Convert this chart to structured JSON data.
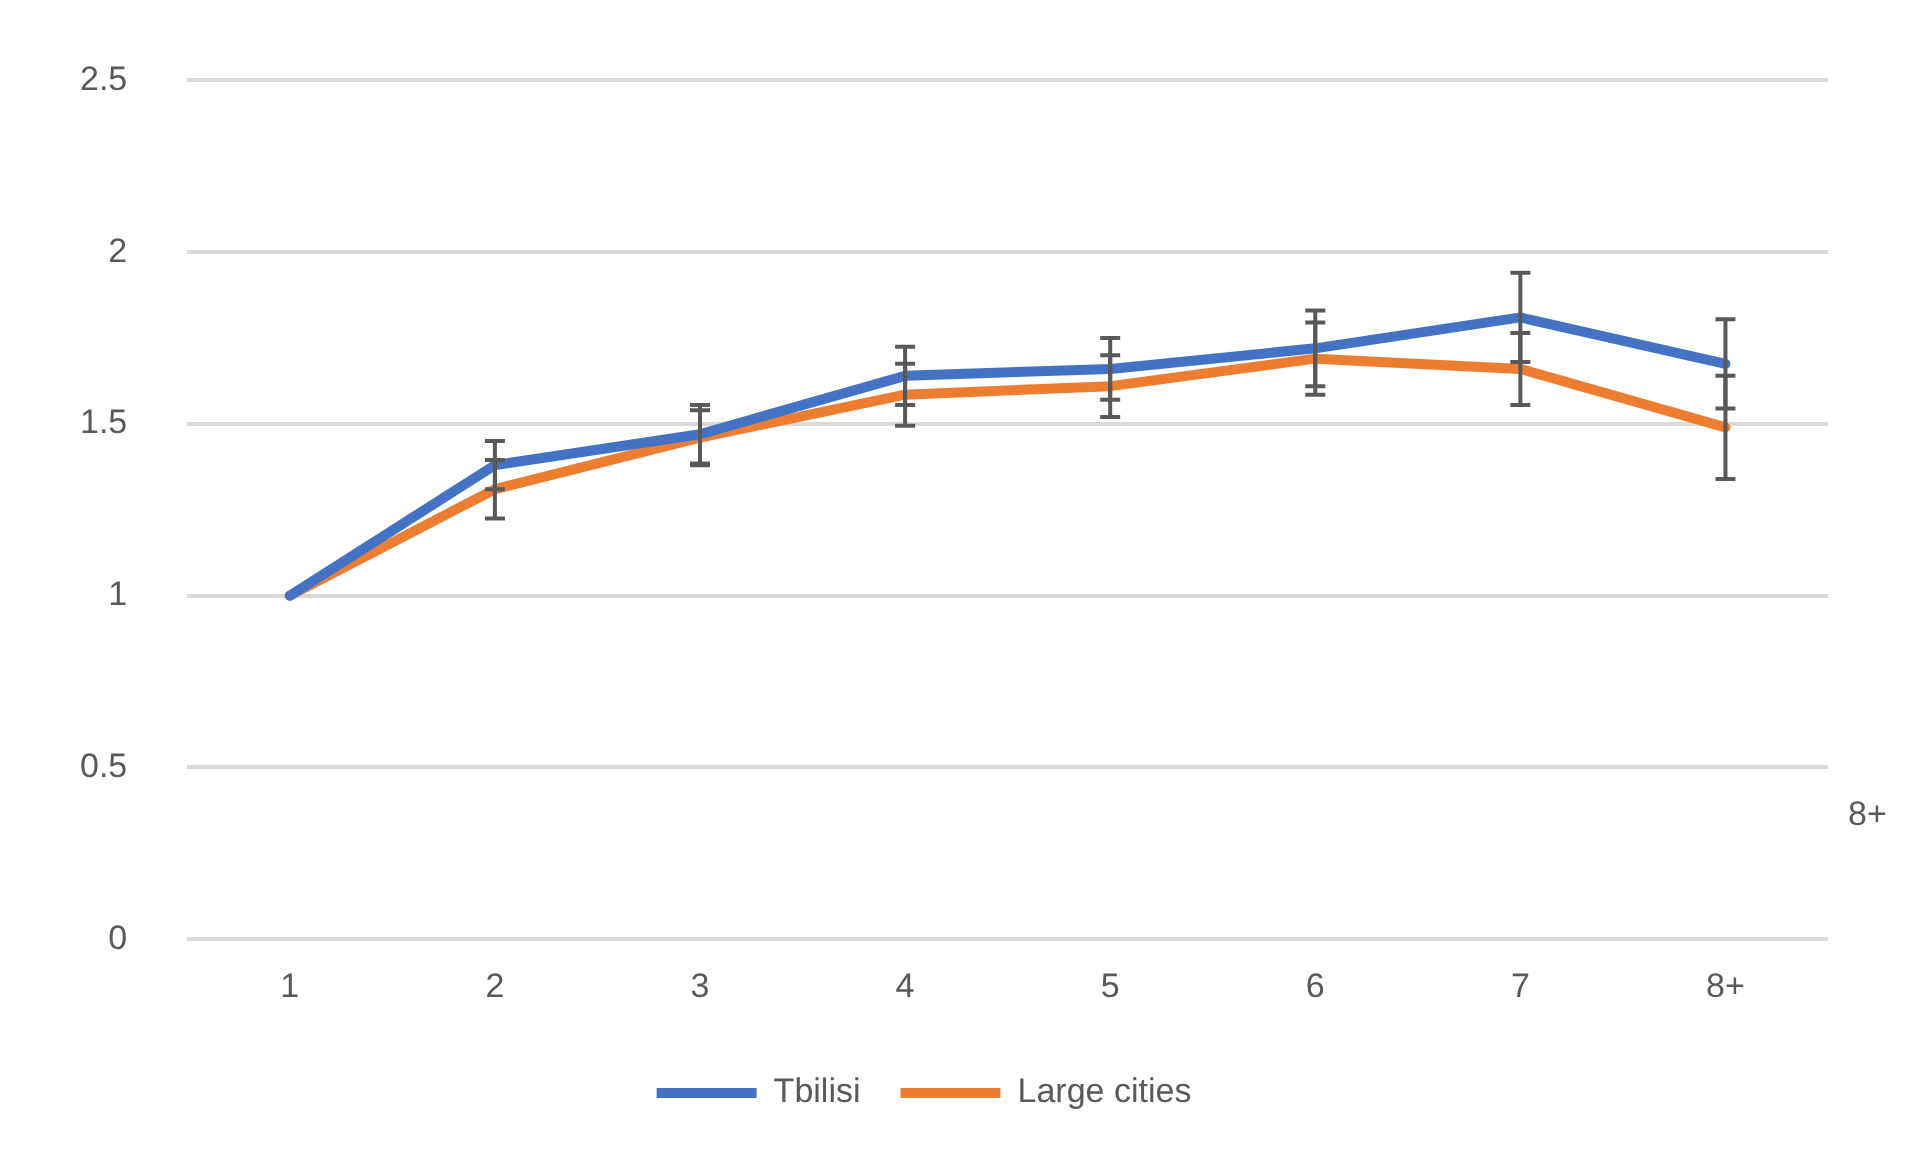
{
  "chart_data": {
    "type": "line",
    "categories": [
      "1",
      "2",
      "3",
      "4",
      "5",
      "6",
      "7",
      "8+"
    ],
    "series": [
      {
        "name": "Tbilisi",
        "color": "#4472c4",
        "values": [
          1,
          1.38,
          1.47,
          1.64,
          1.66,
          1.72,
          1.81,
          1.675
        ],
        "errors": [
          null,
          0.07,
          0.085,
          0.085,
          0.09,
          0.11,
          0.13,
          0.13
        ]
      },
      {
        "name": "Large cities",
        "color": "#ed7d31",
        "values": [
          1,
          1.31,
          1.46,
          1.585,
          1.61,
          1.69,
          1.66,
          1.49
        ],
        "errors": [
          null,
          0.085,
          0.08,
          0.09,
          0.09,
          0.105,
          0.105,
          0.15
        ]
      }
    ],
    "ylim": [
      0,
      2.5
    ],
    "yticks": [
      0,
      0.5,
      1,
      1.5,
      2,
      2.5
    ],
    "grid": "y",
    "legend": "bottom",
    "marker": "none",
    "line_style": "solid",
    "annotations": [
      "8+"
    ]
  }
}
